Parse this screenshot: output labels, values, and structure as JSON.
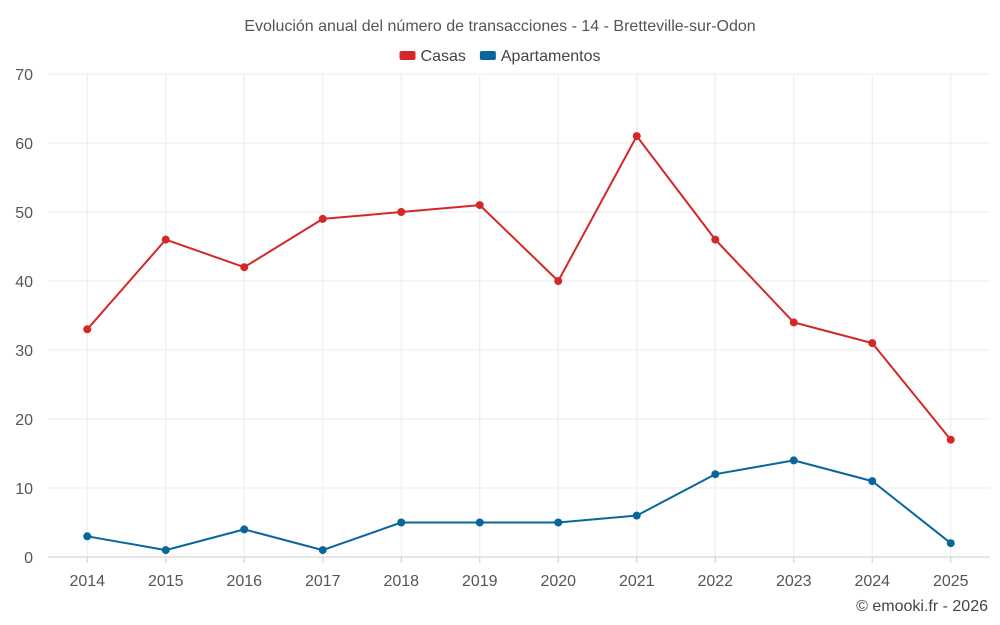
{
  "chart_data": {
    "type": "line",
    "title": "Evolución anual del número de transacciones - 14 - Bretteville-sur-Odon",
    "x": [
      "2014",
      "2015",
      "2016",
      "2017",
      "2018",
      "2019",
      "2020",
      "2021",
      "2022",
      "2023",
      "2024",
      "2025"
    ],
    "series": [
      {
        "name": "Casas",
        "color": "#d62728",
        "values": [
          33,
          46,
          42,
          49,
          50,
          51,
          40,
          61,
          46,
          34,
          31,
          17
        ]
      },
      {
        "name": "Apartamentos",
        "color": "#08669b",
        "values": [
          3,
          1,
          4,
          1,
          5,
          5,
          5,
          6,
          12,
          14,
          11,
          2
        ]
      }
    ],
    "ylim": [
      0,
      70
    ],
    "yticks": [
      0,
      10,
      20,
      30,
      40,
      50,
      60,
      70
    ],
    "grid": true,
    "legend_position": "top-center",
    "xlabel": "",
    "ylabel": ""
  },
  "credit": "© emooki.fr - 2026"
}
